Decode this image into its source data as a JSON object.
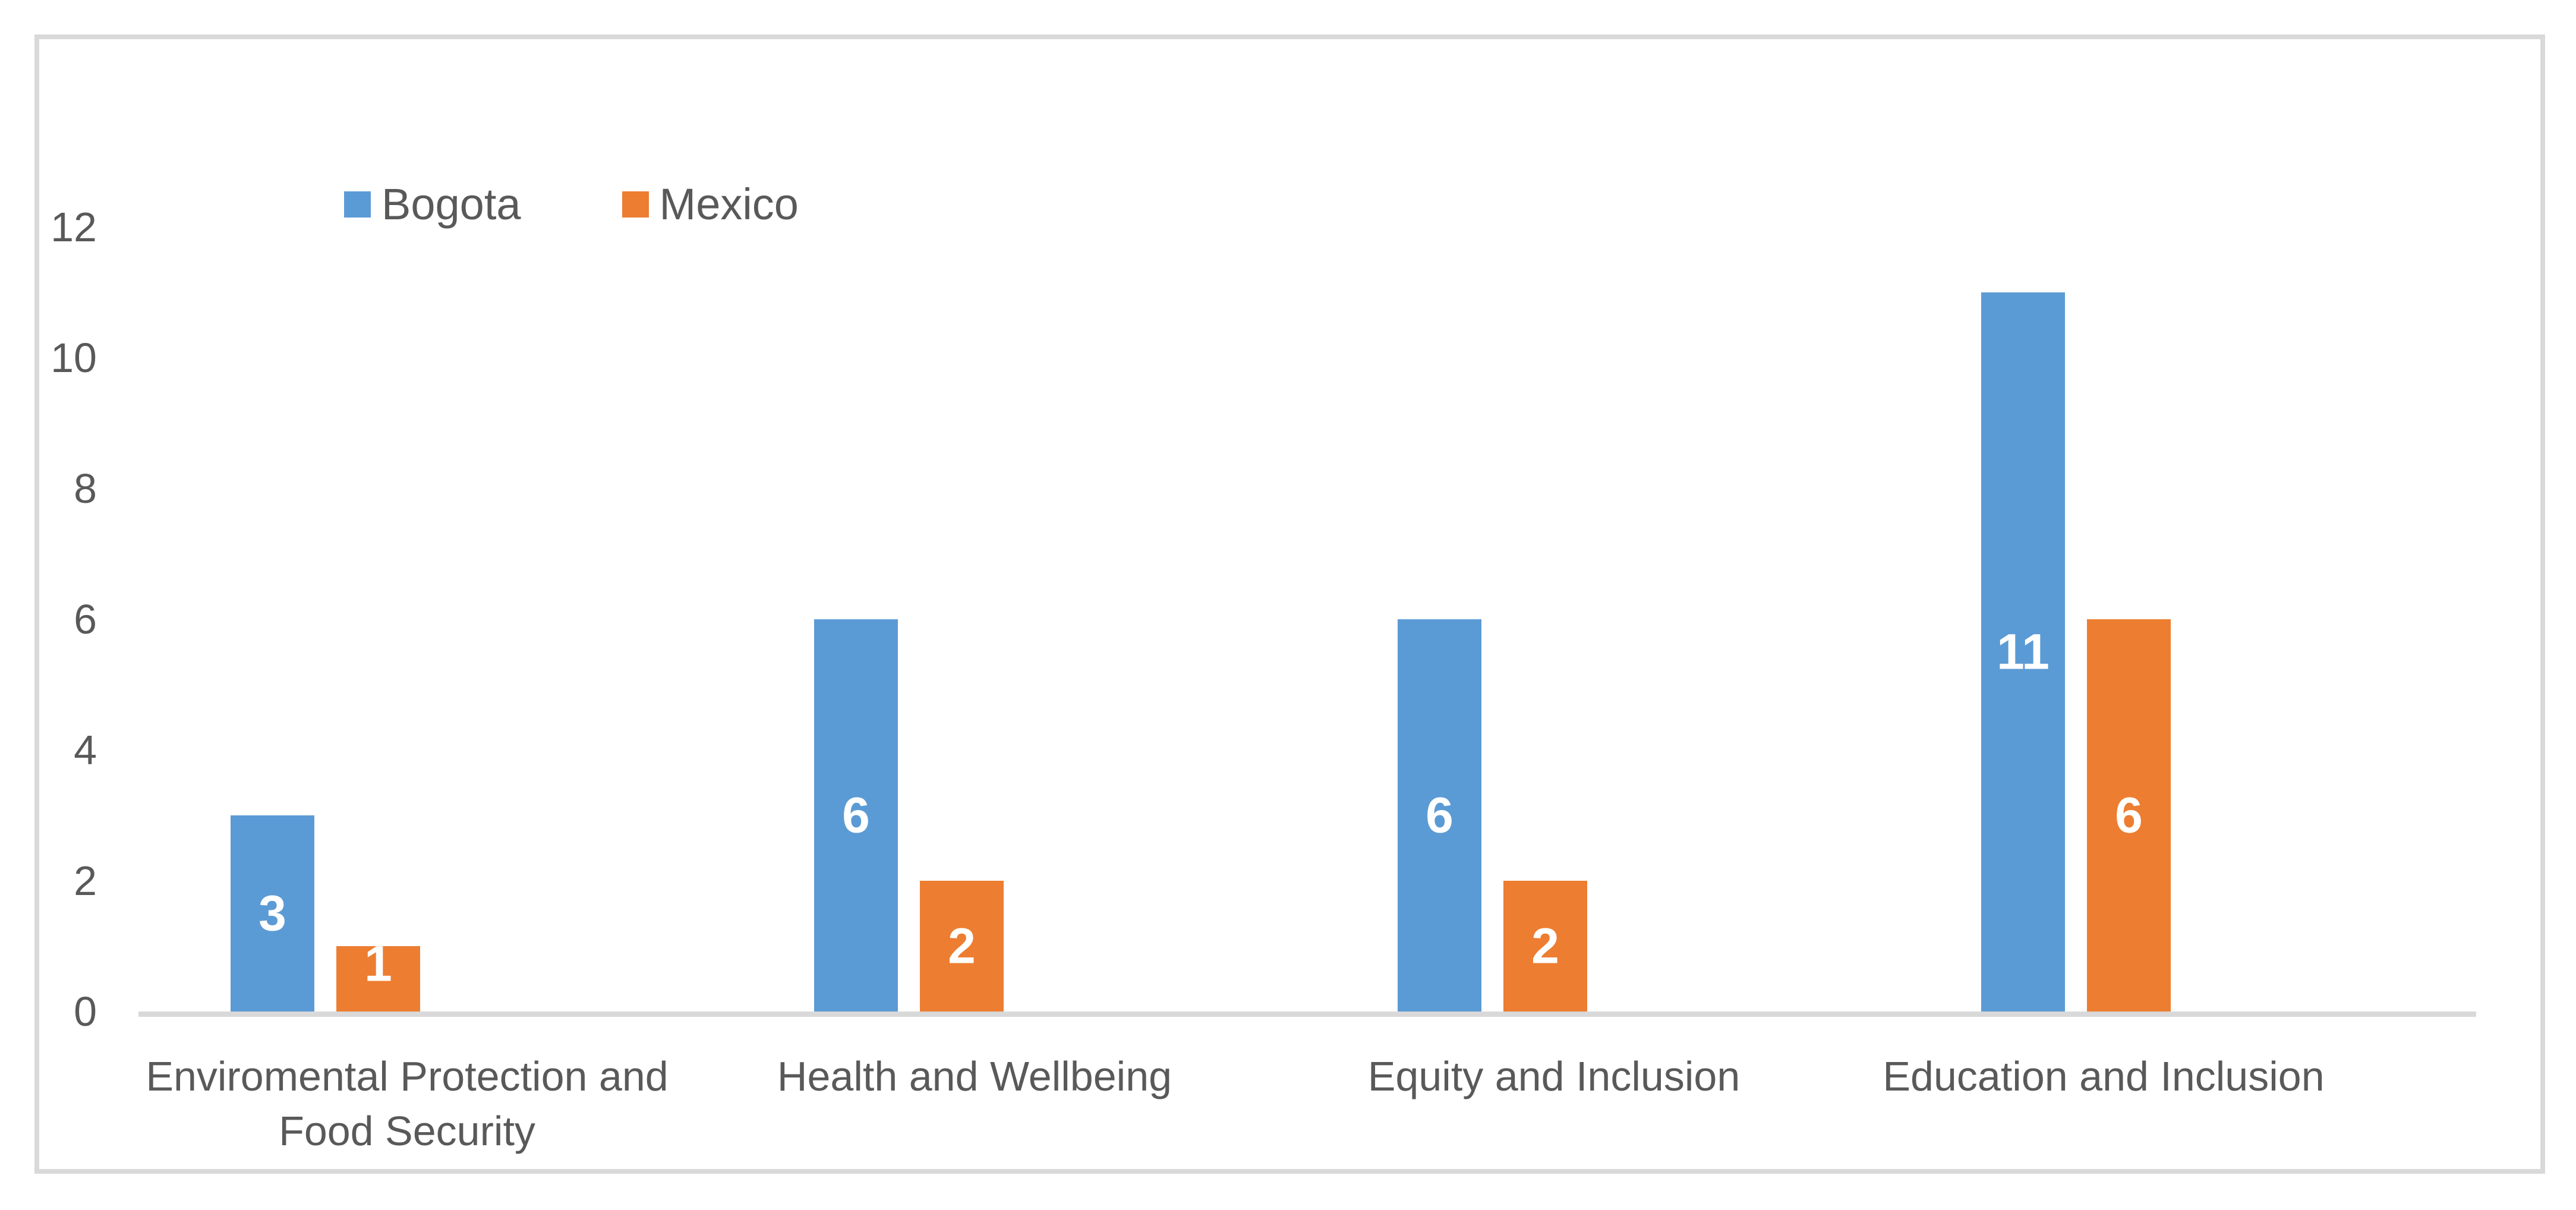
{
  "chart_data": {
    "type": "bar",
    "title": "",
    "categories": [
      "Enviromental Protection and Food Security",
      "Health and Wellbeing",
      "Equity and Inclusion",
      "Education and Inclusion"
    ],
    "series": [
      {
        "name": "Bogota",
        "color": "#5B9BD5",
        "values": [
          3,
          6,
          6,
          11
        ]
      },
      {
        "name": "Mexico",
        "color": "#ED7D31",
        "values": [
          1,
          2,
          2,
          6
        ]
      }
    ],
    "data_labels": [
      [
        "3",
        "6",
        "6",
        "11"
      ],
      [
        "1",
        "2",
        "2",
        "6"
      ]
    ],
    "ylabel": "",
    "xlabel": "",
    "ylim": [
      0,
      12
    ],
    "yticks": [
      "0",
      "2",
      "4",
      "6",
      "8",
      "10",
      "12"
    ],
    "grid": false,
    "legend_position": "top-left-inside",
    "data_label_style": "inside-center-white-bold"
  },
  "colors": {
    "bogota": "#5B9BD5",
    "mexico": "#ED7D31",
    "text": "#595959",
    "frame": "#D9D9D9",
    "data_label": "#ffffff",
    "background": "#ffffff"
  },
  "legend": {
    "items": [
      {
        "label": "Bogota",
        "color": "#5B9BD5"
      },
      {
        "label": "Mexico",
        "color": "#ED7D31"
      }
    ]
  }
}
